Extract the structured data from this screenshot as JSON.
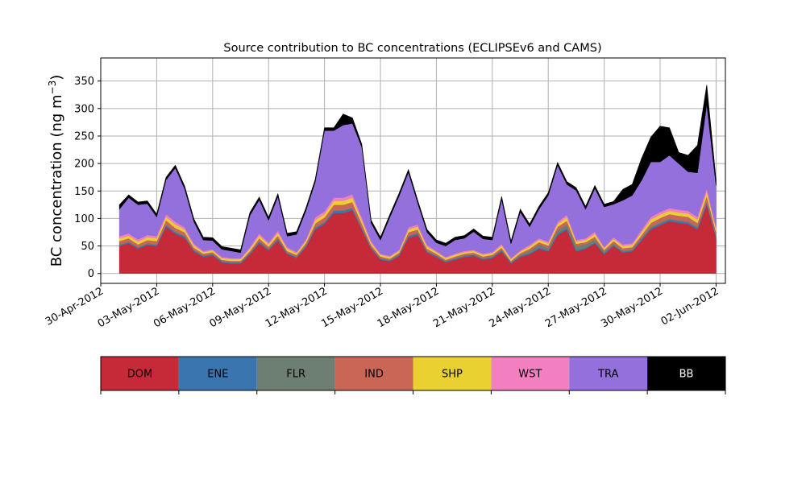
{
  "chart_data": {
    "type": "area",
    "title": "Source contribution to BC concentrations (ECLIPSEv6 and CAMS)",
    "ylabel_main": "BC concentration (ng m",
    "ylabel_sup": "−3",
    "ylabel_close": ")",
    "xlabel": "",
    "xlim": [
      "2012-04-30T00:00",
      "2012-06-02T12:00"
    ],
    "ylim": [
      -18,
      392
    ],
    "grid": true,
    "yticks": [
      0,
      50,
      100,
      150,
      200,
      250,
      300,
      350
    ],
    "xticks": [
      {
        "date": "2012-04-30",
        "label": "30-Apr-2012"
      },
      {
        "date": "2012-05-03",
        "label": "03-May-2012"
      },
      {
        "date": "2012-05-06",
        "label": "06-May-2012"
      },
      {
        "date": "2012-05-09",
        "label": "09-May-2012"
      },
      {
        "date": "2012-05-12",
        "label": "12-May-2012"
      },
      {
        "date": "2012-05-15",
        "label": "15-May-2012"
      },
      {
        "date": "2012-05-18",
        "label": "18-May-2012"
      },
      {
        "date": "2012-05-21",
        "label": "21-May-2012"
      },
      {
        "date": "2012-05-24",
        "label": "24-May-2012"
      },
      {
        "date": "2012-05-27",
        "label": "27-May-2012"
      },
      {
        "date": "2012-05-30",
        "label": "30-May-2012"
      },
      {
        "date": "2012-06-02",
        "label": "02-Jun-2012"
      }
    ],
    "x": [
      "2012-05-01",
      "2012-05-01T12:00",
      "2012-05-02",
      "2012-05-02T12:00",
      "2012-05-03",
      "2012-05-03T12:00",
      "2012-05-04",
      "2012-05-04T12:00",
      "2012-05-05",
      "2012-05-05T12:00",
      "2012-05-06",
      "2012-05-06T12:00",
      "2012-05-07",
      "2012-05-07T12:00",
      "2012-05-08",
      "2012-05-08T12:00",
      "2012-05-09",
      "2012-05-09T12:00",
      "2012-05-10",
      "2012-05-10T12:00",
      "2012-05-11",
      "2012-05-11T12:00",
      "2012-05-12",
      "2012-05-12T12:00",
      "2012-05-13",
      "2012-05-13T12:00",
      "2012-05-14",
      "2012-05-14T12:00",
      "2012-05-15",
      "2012-05-15T12:00",
      "2012-05-16",
      "2012-05-16T12:00",
      "2012-05-17",
      "2012-05-17T12:00",
      "2012-05-18",
      "2012-05-18T12:00",
      "2012-05-19",
      "2012-05-19T12:00",
      "2012-05-20",
      "2012-05-20T12:00",
      "2012-05-21",
      "2012-05-21T12:00",
      "2012-05-22",
      "2012-05-22T12:00",
      "2012-05-23",
      "2012-05-23T12:00",
      "2012-05-24",
      "2012-05-24T12:00",
      "2012-05-25",
      "2012-05-25T12:00",
      "2012-05-26",
      "2012-05-26T12:00",
      "2012-05-27",
      "2012-05-27T12:00",
      "2012-05-28",
      "2012-05-28T12:00",
      "2012-05-29",
      "2012-05-29T12:00",
      "2012-05-30",
      "2012-05-30T12:00",
      "2012-05-31",
      "2012-05-31T12:00",
      "2012-06-01",
      "2012-06-01T12:00",
      "2012-06-02"
    ],
    "series": [
      {
        "name": "DOM",
        "color": "#c62937",
        "values": [
          50,
          55,
          45,
          52,
          50,
          85,
          72,
          65,
          40,
          30,
          33,
          20,
          18,
          18,
          35,
          55,
          42,
          60,
          35,
          28,
          48,
          80,
          90,
          110,
          110,
          115,
          80,
          45,
          25,
          22,
          32,
          65,
          70,
          38,
          30,
          20,
          25,
          30,
          32,
          25,
          28,
          40,
          18,
          30,
          35,
          45,
          40,
          70,
          80,
          40,
          45,
          55,
          35,
          50,
          38,
          40,
          60,
          80,
          88,
          95,
          92,
          90,
          80,
          125,
          65
        ]
      },
      {
        "name": "ENE",
        "color": "#3b75af",
        "values": [
          2,
          2,
          2,
          2,
          2,
          3,
          3,
          3,
          2,
          2,
          2,
          2,
          2,
          2,
          2,
          3,
          2,
          3,
          2,
          2,
          2,
          3,
          3,
          4,
          4,
          4,
          3,
          2,
          2,
          2,
          2,
          3,
          3,
          2,
          2,
          2,
          2,
          2,
          2,
          2,
          2,
          2,
          2,
          2,
          2,
          2,
          2,
          3,
          3,
          2,
          2,
          2,
          2,
          2,
          2,
          2,
          3,
          3,
          3,
          3,
          3,
          3,
          3,
          4,
          3
        ]
      },
      {
        "name": "FLR",
        "color": "#6d7f72",
        "values": [
          1,
          1,
          1,
          1,
          1,
          1,
          1,
          1,
          1,
          1,
          1,
          1,
          1,
          1,
          1,
          1,
          1,
          1,
          1,
          1,
          1,
          1,
          1,
          1,
          1,
          1,
          1,
          1,
          1,
          1,
          1,
          1,
          1,
          1,
          1,
          1,
          1,
          1,
          1,
          1,
          1,
          1,
          1,
          2,
          4,
          6,
          5,
          6,
          6,
          8,
          6,
          5,
          3,
          3,
          2,
          2,
          2,
          2,
          2,
          2,
          2,
          2,
          2,
          2,
          2
        ]
      },
      {
        "name": "IND",
        "color": "#c96656",
        "values": [
          6,
          6,
          5,
          6,
          6,
          8,
          7,
          6,
          4,
          3,
          3,
          2,
          2,
          2,
          3,
          5,
          4,
          5,
          3,
          3,
          4,
          7,
          8,
          10,
          10,
          10,
          7,
          4,
          3,
          2,
          3,
          6,
          6,
          4,
          3,
          2,
          3,
          3,
          3,
          3,
          3,
          4,
          2,
          3,
          4,
          4,
          4,
          6,
          7,
          4,
          4,
          5,
          3,
          4,
          4,
          4,
          5,
          7,
          8,
          8,
          8,
          8,
          7,
          10,
          6
        ]
      },
      {
        "name": "SHP",
        "color": "#e8d130",
        "values": [
          5,
          5,
          5,
          5,
          5,
          6,
          6,
          5,
          4,
          3,
          3,
          3,
          3,
          3,
          4,
          5,
          4,
          5,
          4,
          3,
          4,
          6,
          6,
          7,
          7,
          8,
          6,
          4,
          3,
          3,
          3,
          5,
          5,
          4,
          3,
          3,
          3,
          3,
          3,
          3,
          3,
          4,
          3,
          3,
          4,
          4,
          4,
          5,
          6,
          4,
          4,
          5,
          3,
          4,
          4,
          4,
          5,
          6,
          6,
          6,
          6,
          6,
          6,
          8,
          5
        ]
      },
      {
        "name": "WST",
        "color": "#f27fbf",
        "values": [
          4,
          4,
          4,
          4,
          4,
          5,
          5,
          4,
          3,
          2,
          2,
          2,
          2,
          2,
          3,
          4,
          3,
          4,
          3,
          2,
          3,
          5,
          5,
          6,
          6,
          6,
          5,
          3,
          2,
          2,
          2,
          4,
          4,
          3,
          2,
          2,
          2,
          2,
          2,
          2,
          2,
          3,
          2,
          2,
          3,
          3,
          3,
          4,
          5,
          3,
          3,
          4,
          2,
          3,
          3,
          3,
          4,
          5,
          5,
          5,
          5,
          5,
          5,
          6,
          4
        ]
      },
      {
        "name": "TRA",
        "color": "#9370db",
        "values": [
          49,
          65,
          63,
          57,
          35,
          62,
          98,
          70,
          40,
          20,
          16,
          14,
          13,
          10,
          58,
          61,
          41,
          62,
          20,
          32,
          52,
          64,
          147,
          122,
          132,
          129,
          128,
          33,
          25,
          70,
          98,
          100,
          39,
          23,
          15,
          20,
          25,
          23,
          33,
          27,
          22,
          81,
          26,
          70,
          33,
          53,
          84,
          103,
          55,
          90,
          53,
          79,
          73,
          60,
          80,
          87,
          90,
          100,
          91,
          96,
          84,
          71,
          80,
          153,
          75
        ]
      },
      {
        "name": "BB",
        "color": "#000000",
        "values": [
          8,
          5,
          5,
          5,
          5,
          5,
          5,
          5,
          5,
          5,
          5,
          5,
          5,
          5,
          5,
          5,
          5,
          5,
          5,
          5,
          5,
          5,
          5,
          5,
          20,
          10,
          5,
          5,
          5,
          5,
          5,
          5,
          5,
          5,
          5,
          5,
          5,
          5,
          5,
          5,
          5,
          5,
          5,
          5,
          5,
          5,
          5,
          5,
          5,
          5,
          5,
          5,
          5,
          5,
          20,
          20,
          40,
          45,
          65,
          50,
          20,
          30,
          50,
          35,
          10
        ]
      }
    ],
    "legend_placement": "below"
  }
}
